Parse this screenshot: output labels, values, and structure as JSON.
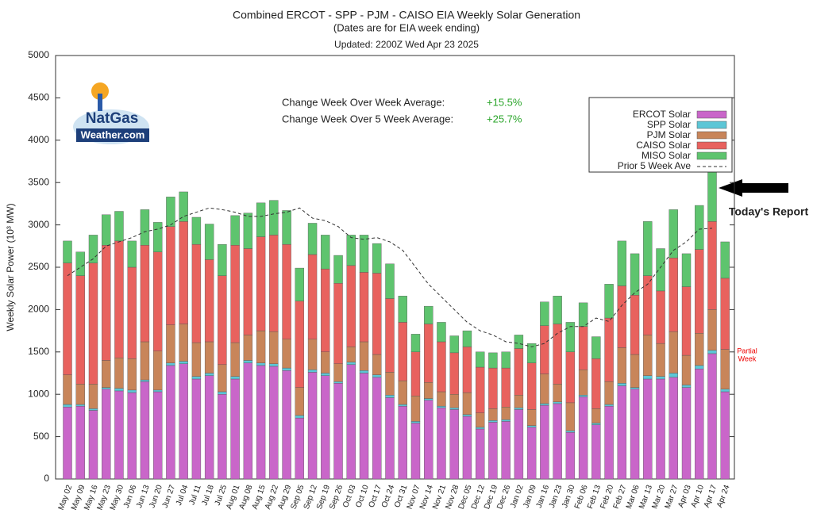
{
  "chart_data": {
    "type": "bar",
    "title": "Combined ERCOT - SPP - PJM - CAISO EIA Weekly Solar Generation",
    "subtitle": "(Dates are for EIA week ending)",
    "updated": "Updated: 2200Z Wed Apr 23 2025",
    "y_label": "Weekly Solar Power (10³ MW)",
    "stacked": true,
    "grid": false,
    "legend": "upper right",
    "ylim": [
      0,
      5000
    ],
    "yticks": [
      0,
      500,
      1000,
      1500,
      2000,
      2500,
      3000,
      3500,
      4000,
      4500,
      5000
    ],
    "categories": [
      "May 02",
      "May 09",
      "May 16",
      "May 23",
      "May 30",
      "Jun 06",
      "Jun 13",
      "Jun 20",
      "Jun 27",
      "Jul 04",
      "Jul 11",
      "Jul 18",
      "Jul 25",
      "Aug 01",
      "Aug 08",
      "Aug 15",
      "Aug 22",
      "Aug 29",
      "Sep 05",
      "Sep 12",
      "Sep 19",
      "Sep 26",
      "Oct 03",
      "Oct 10",
      "Oct 17",
      "Oct 24",
      "Oct 31",
      "Nov 07",
      "Nov 14",
      "Nov 21",
      "Nov 28",
      "Dec 05",
      "Dec 12",
      "Dec 19",
      "Dec 26",
      "Jan 02",
      "Jan 09",
      "Jan 16",
      "Jan 23",
      "Jan 30",
      "Feb 06",
      "Feb 13",
      "Feb 20",
      "Feb 27",
      "Mar 06",
      "Mar 13",
      "Mar 20",
      "Mar 27",
      "Apr 03",
      "Apr 10",
      "Apr 17",
      "Apr 24"
    ],
    "series": [
      {
        "name": "ERCOT Solar",
        "color": "#c966c9",
        "values": [
          850,
          860,
          810,
          1060,
          1040,
          1020,
          1150,
          1030,
          1340,
          1360,
          1180,
          1220,
          1000,
          1180,
          1370,
          1340,
          1330,
          1280,
          720,
          1260,
          1220,
          1130,
          1350,
          1250,
          1200,
          960,
          860,
          660,
          930,
          840,
          820,
          740,
          590,
          670,
          680,
          820,
          610,
          870,
          890,
          550,
          970,
          640,
          860,
          1100,
          1060,
          1180,
          1180,
          1200,
          1080,
          1300,
          1480,
          1030
        ]
      },
      {
        "name": "SPP Solar",
        "color": "#5cc6d6",
        "values": [
          30,
          20,
          20,
          20,
          30,
          30,
          20,
          20,
          30,
          30,
          30,
          30,
          30,
          30,
          30,
          30,
          30,
          30,
          30,
          30,
          30,
          20,
          30,
          30,
          30,
          30,
          20,
          20,
          20,
          20,
          20,
          20,
          20,
          20,
          20,
          20,
          20,
          20,
          20,
          20,
          20,
          20,
          20,
          30,
          20,
          40,
          30,
          50,
          30,
          40,
          40,
          30
        ]
      },
      {
        "name": "PJM Solar",
        "color": "#c8855a",
        "values": [
          350,
          240,
          290,
          320,
          360,
          370,
          450,
          460,
          450,
          440,
          400,
          370,
          320,
          400,
          300,
          380,
          380,
          340,
          330,
          360,
          250,
          210,
          180,
          340,
          240,
          270,
          280,
          300,
          190,
          170,
          160,
          260,
          170,
          140,
          150,
          150,
          190,
          350,
          210,
          330,
          300,
          170,
          270,
          420,
          390,
          480,
          390,
          490,
          350,
          380,
          480,
          470
        ]
      },
      {
        "name": "CAISO Solar",
        "color": "#e8625e",
        "values": [
          1320,
          1280,
          1430,
          1360,
          1380,
          1080,
          1140,
          1170,
          1160,
          1210,
          1160,
          970,
          1050,
          1150,
          1020,
          1110,
          1140,
          1120,
          1020,
          1000,
          980,
          950,
          960,
          820,
          960,
          870,
          690,
          520,
          690,
          590,
          490,
          540,
          540,
          480,
          460,
          550,
          550,
          570,
          710,
          600,
          510,
          590,
          750,
          730,
          700,
          700,
          620,
          870,
          810,
          990,
          1040,
          840
        ]
      },
      {
        "name": "MISO Solar",
        "color": "#5ec46e",
        "values": [
          260,
          280,
          330,
          360,
          350,
          310,
          420,
          350,
          350,
          350,
          320,
          420,
          370,
          350,
          420,
          400,
          410,
          400,
          390,
          370,
          400,
          330,
          360,
          440,
          350,
          410,
          310,
          210,
          210,
          230,
          200,
          190,
          180,
          180,
          190,
          160,
          230,
          280,
          330,
          350,
          280,
          260,
          400,
          530,
          490,
          640,
          500,
          570,
          390,
          520,
          680,
          430
        ]
      }
    ],
    "line_series": {
      "name": "Prior 5 Week Ave",
      "color": "#333333",
      "dashed": true,
      "values": [
        2400,
        2500,
        2600,
        2750,
        2800,
        2850,
        2920,
        2950,
        3000,
        3100,
        3150,
        3200,
        3180,
        3150,
        3100,
        3100,
        3130,
        3150,
        3200,
        3080,
        3050,
        2980,
        2850,
        2830,
        2850,
        2800,
        2700,
        2500,
        2300,
        2150,
        2000,
        1850,
        1750,
        1700,
        1620,
        1600,
        1560,
        1600,
        1720,
        1800,
        1800,
        1900,
        1860,
        2050,
        2200,
        2300,
        2500,
        2700,
        2800,
        2950,
        2960,
        null
      ]
    },
    "annotations": [
      {
        "label": "Change Week Over Week Average:",
        "value": "+15.5%"
      },
      {
        "label": "Change Week Over 5 Week Average:",
        "value": "+25.7%"
      }
    ],
    "report_label": "Today's Report",
    "partial_label": [
      "Partial",
      "Week"
    ],
    "logo_text": [
      "NatGas",
      "Weather.com"
    ]
  }
}
